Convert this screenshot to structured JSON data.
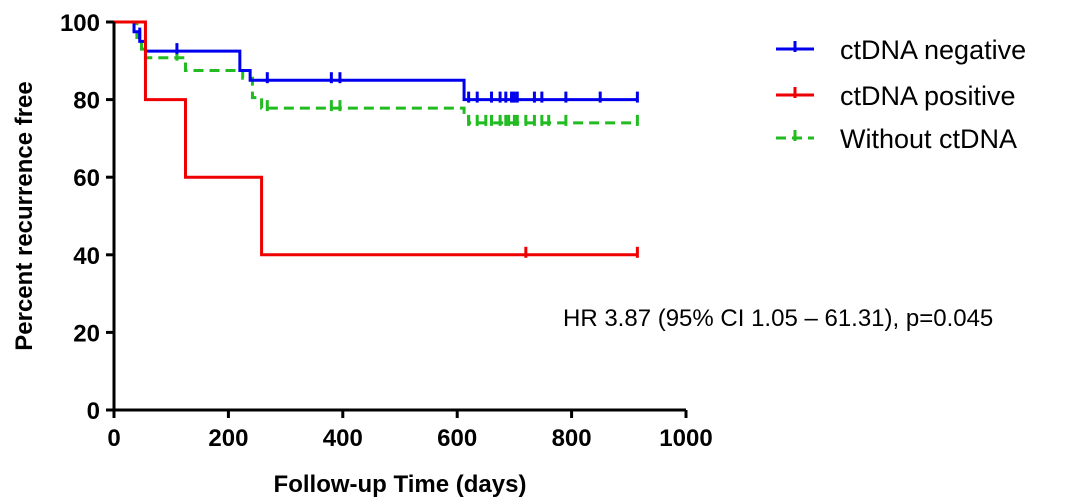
{
  "chart_data": {
    "type": "line",
    "step": true,
    "title": "",
    "xlabel": "Follow-up Time (days)",
    "ylabel": "Percent recurrence free",
    "xlim": [
      0,
      1000
    ],
    "ylim": [
      0,
      100
    ],
    "x_ticks": [
      0,
      200,
      400,
      600,
      800,
      1000
    ],
    "y_ticks": [
      0,
      20,
      40,
      60,
      80,
      100
    ],
    "grid": false,
    "legend_position": "top-right",
    "annotation": "HR 3.87 (95% CI 1.05 – 61.31), p=0.045",
    "series": [
      {
        "name": "ctDNA negative",
        "color": "#0000ee",
        "style": "solid",
        "steps": [
          [
            0,
            100
          ],
          [
            35,
            97.5
          ],
          [
            45,
            95
          ],
          [
            55,
            92.5
          ],
          [
            220,
            87.5
          ],
          [
            238,
            85
          ],
          [
            612,
            80
          ],
          [
            915,
            80
          ]
        ],
        "censored": [
          [
            45,
            96.5
          ],
          [
            110,
            92.5
          ],
          [
            268,
            85
          ],
          [
            380,
            85
          ],
          [
            395,
            85
          ],
          [
            620,
            80
          ],
          [
            635,
            80
          ],
          [
            660,
            80
          ],
          [
            675,
            80
          ],
          [
            685,
            80
          ],
          [
            695,
            80
          ],
          [
            700,
            80
          ],
          [
            705,
            80
          ],
          [
            735,
            80
          ],
          [
            748,
            80
          ],
          [
            790,
            80
          ],
          [
            850,
            80
          ],
          [
            915,
            80
          ]
        ]
      },
      {
        "name": "ctDNA positive",
        "color": "#ee0000",
        "style": "solid",
        "steps": [
          [
            0,
            100
          ],
          [
            55,
            80
          ],
          [
            125,
            60
          ],
          [
            258,
            40
          ],
          [
            915,
            40
          ]
        ],
        "censored": [
          [
            720,
            40
          ],
          [
            915,
            40
          ]
        ]
      },
      {
        "name": "Without ctDNA",
        "color": "#22bb22",
        "style": "dashed",
        "steps": [
          [
            0,
            100
          ],
          [
            40,
            96
          ],
          [
            48,
            93
          ],
          [
            55,
            90.8
          ],
          [
            125,
            87.5
          ],
          [
            225,
            85.5
          ],
          [
            242,
            80.5
          ],
          [
            258,
            77.8
          ],
          [
            612,
            75.5
          ],
          [
            620,
            74
          ],
          [
            915,
            74
          ]
        ],
        "censored": [
          [
            110,
            90.8
          ],
          [
            268,
            77.8
          ],
          [
            380,
            77.8
          ],
          [
            395,
            77.8
          ],
          [
            620,
            74
          ],
          [
            635,
            74
          ],
          [
            650,
            74
          ],
          [
            660,
            74
          ],
          [
            675,
            74
          ],
          [
            685,
            74
          ],
          [
            690,
            74
          ],
          [
            700,
            74
          ],
          [
            705,
            74
          ],
          [
            720,
            74
          ],
          [
            735,
            74
          ],
          [
            748,
            74
          ],
          [
            760,
            74
          ],
          [
            790,
            74
          ],
          [
            915,
            74
          ]
        ]
      }
    ]
  }
}
